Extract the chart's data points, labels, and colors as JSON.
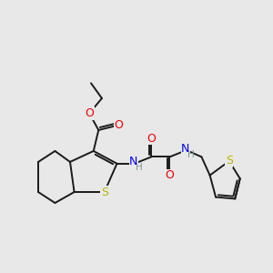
{
  "bg_color": "#e8e8e8",
  "bond_color": "#1a1a1a",
  "bond_width": 1.4,
  "atom_colors": {
    "S": "#b8b800",
    "O": "#ee0000",
    "N": "#0000ee",
    "H": "#7a9a9a",
    "C": "#1a1a1a"
  }
}
